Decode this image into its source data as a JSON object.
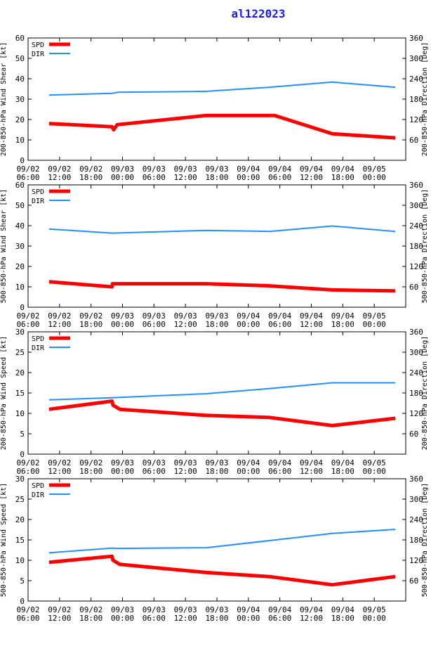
{
  "title": "al122023",
  "x_ticks": [
    [
      "09/02",
      "06:00"
    ],
    [
      "09/02",
      "12:00"
    ],
    [
      "09/02",
      "18:00"
    ],
    [
      "09/03",
      "00:00"
    ],
    [
      "09/03",
      "06:00"
    ],
    [
      "09/03",
      "12:00"
    ],
    [
      "09/03",
      "18:00"
    ],
    [
      "09/04",
      "00:00"
    ],
    [
      "09/04",
      "06:00"
    ],
    [
      "09/04",
      "12:00"
    ],
    [
      "09/04",
      "18:00"
    ],
    [
      "09/05",
      "00:00"
    ]
  ],
  "colors": {
    "spd": "#ff0000",
    "dir": "#1e90ff",
    "axis": "#000000"
  },
  "chart_data": [
    {
      "type": "line",
      "ylabel_left": "200-850-hPa Wind Shear [kt]",
      "ylabel_right": "200-850-hPa Direction [Deg]",
      "ylim_left": [
        0,
        60
      ],
      "yticks_left": [
        0,
        10,
        20,
        30,
        40,
        50,
        60
      ],
      "ylim_right": [
        0,
        360
      ],
      "yticks_right": [
        60,
        120,
        180,
        240,
        300,
        360
      ],
      "xlim_hours": [
        0,
        72
      ],
      "legend": [
        "SPD",
        "DIR"
      ],
      "series": [
        {
          "name": "SPD",
          "axis": "left",
          "x": [
            4,
            16,
            16.3,
            17,
            34,
            47,
            58,
            70
          ],
          "values": [
            18,
            16.5,
            15,
            17.5,
            22,
            22,
            13,
            11
          ]
        },
        {
          "name": "DIR",
          "axis": "right",
          "x": [
            4,
            16,
            17,
            34,
            46,
            58,
            70
          ],
          "values": [
            192,
            197,
            200,
            203,
            215,
            230,
            215
          ]
        }
      ]
    },
    {
      "type": "line",
      "ylabel_left": "500-850-hPa Wind Shear [kt]",
      "ylabel_right": "500-850-hPa Direction [Deg]",
      "ylim_left": [
        0,
        60
      ],
      "yticks_left": [
        0,
        10,
        20,
        30,
        40,
        50,
        60
      ],
      "ylim_right": [
        0,
        360
      ],
      "yticks_right": [
        60,
        120,
        180,
        240,
        300,
        360
      ],
      "xlim_hours": [
        0,
        72
      ],
      "legend": [
        "SPD",
        "DIR"
      ],
      "series": [
        {
          "name": "SPD",
          "axis": "left",
          "x": [
            4,
            16,
            16.1,
            34,
            46,
            58,
            70
          ],
          "values": [
            12.5,
            10,
            11.5,
            11.5,
            10.5,
            8.5,
            8
          ]
        },
        {
          "name": "DIR",
          "axis": "right",
          "x": [
            4,
            16,
            34,
            46,
            58,
            70
          ],
          "values": [
            230,
            218,
            226,
            223,
            239,
            223
          ]
        }
      ]
    },
    {
      "type": "line",
      "ylabel_left": "200-850-hPa Wind Speed [kt]",
      "ylabel_right": "200-850-hPa Direction [Deg]",
      "ylim_left": [
        0,
        30
      ],
      "yticks_left": [
        0,
        5,
        10,
        15,
        20,
        25,
        30
      ],
      "ylim_right": [
        0,
        360
      ],
      "yticks_right": [
        60,
        120,
        180,
        240,
        300,
        360
      ],
      "xlim_hours": [
        0,
        72
      ],
      "legend": [
        "SPD",
        "DIR"
      ],
      "series": [
        {
          "name": "SPD",
          "axis": "left",
          "x": [
            4,
            16,
            16.2,
            17.5,
            34,
            46,
            58,
            70
          ],
          "values": [
            11,
            13,
            12,
            11,
            9.5,
            9,
            7,
            8.8
          ]
        },
        {
          "name": "DIR",
          "axis": "right",
          "x": [
            4,
            16,
            34,
            46,
            58,
            70
          ],
          "values": [
            160,
            166,
            178,
            193,
            210,
            210
          ]
        }
      ]
    },
    {
      "type": "line",
      "ylabel_left": "500-850-hPa Wind Speed [kt]",
      "ylabel_right": "500-850-hPa Direction [Deg]",
      "ylim_left": [
        0,
        30
      ],
      "yticks_left": [
        0,
        5,
        10,
        15,
        20,
        25,
        30
      ],
      "ylim_right": [
        0,
        360
      ],
      "yticks_right": [
        60,
        120,
        180,
        240,
        300,
        360
      ],
      "xlim_hours": [
        0,
        72
      ],
      "legend": [
        "SPD",
        "DIR"
      ],
      "series": [
        {
          "name": "SPD",
          "axis": "left",
          "x": [
            4,
            16,
            16.2,
            17.5,
            34,
            46,
            58,
            70
          ],
          "values": [
            9.5,
            11,
            10,
            9,
            7,
            6,
            4,
            6
          ]
        },
        {
          "name": "DIR",
          "axis": "right",
          "x": [
            4,
            16,
            17,
            34,
            46,
            58,
            70
          ],
          "values": [
            142,
            156,
            155,
            157,
            178,
            199,
            211
          ]
        }
      ]
    }
  ]
}
